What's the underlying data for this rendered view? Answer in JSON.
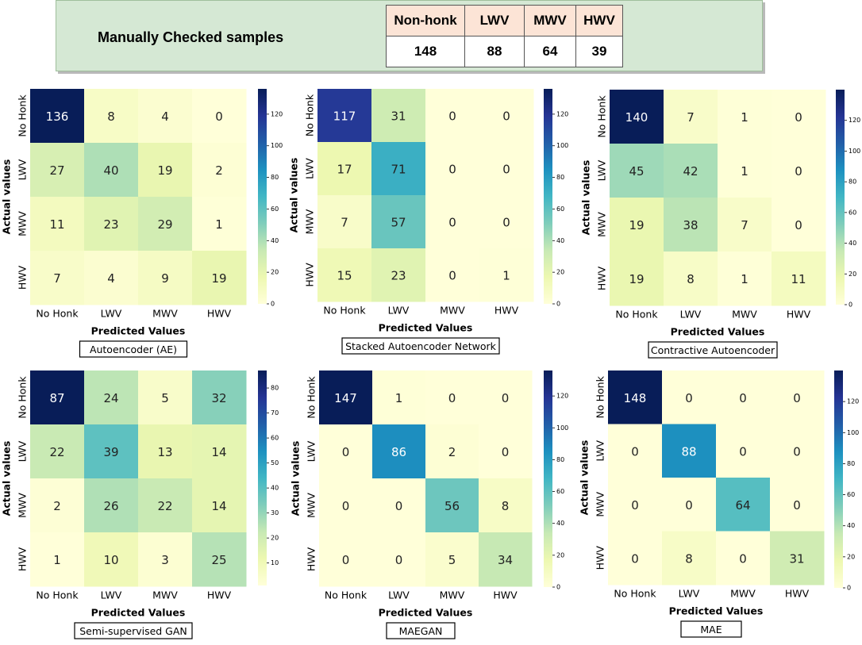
{
  "header": {
    "title": "Manually Checked samples",
    "columns": [
      "Non-honk",
      "LWV",
      "MWV",
      "HWV"
    ],
    "values": [
      "148",
      "88",
      "64",
      "39"
    ]
  },
  "chart_data": [
    {
      "type": "heatmap",
      "title": "Autoencoder (AE)",
      "xlabel": "Predicted Values",
      "ylabel": "Actual values",
      "x_categories": [
        "No Honk",
        "LWV",
        "MWV",
        "HWV"
      ],
      "y_categories": [
        "No Honk",
        "LWV",
        "MWV",
        "HWV"
      ],
      "matrix": [
        [
          136,
          8,
          4,
          0
        ],
        [
          27,
          40,
          19,
          2
        ],
        [
          11,
          23,
          29,
          1
        ],
        [
          7,
          4,
          9,
          19
        ]
      ],
      "colorbar": {
        "min": 0,
        "max": 136,
        "ticks": [
          0,
          20,
          40,
          60,
          80,
          100,
          120
        ]
      }
    },
    {
      "type": "heatmap",
      "title": "Stacked Autoencoder Network",
      "xlabel": "Predicted Values",
      "ylabel": "Actual values",
      "x_categories": [
        "No Honk",
        "LWV",
        "MWV",
        "HWV"
      ],
      "y_categories": [
        "No Honk",
        "LWV",
        "MWV",
        "HWV"
      ],
      "matrix": [
        [
          117,
          31,
          0,
          0
        ],
        [
          17,
          71,
          0,
          0
        ],
        [
          7,
          57,
          0,
          0
        ],
        [
          15,
          23,
          0,
          1
        ]
      ],
      "colorbar": {
        "min": 0,
        "max": 136,
        "ticks": [
          0,
          20,
          40,
          60,
          80,
          100,
          120
        ]
      }
    },
    {
      "type": "heatmap",
      "title": "Contractive Autoencoder",
      "xlabel": "Predicted Values",
      "ylabel": "Actual values",
      "x_categories": [
        "No Honk",
        "LWV",
        "MWV",
        "HWV"
      ],
      "y_categories": [
        "No Honk",
        "LWV",
        "MWV",
        "HWV"
      ],
      "matrix": [
        [
          140,
          7,
          1,
          0
        ],
        [
          45,
          42,
          1,
          0
        ],
        [
          19,
          38,
          7,
          0
        ],
        [
          19,
          8,
          1,
          11
        ]
      ],
      "colorbar": {
        "min": 0,
        "max": 140,
        "ticks": [
          0,
          20,
          40,
          60,
          80,
          100,
          120
        ]
      }
    },
    {
      "type": "heatmap",
      "title": "Semi-supervised GAN",
      "xlabel": "Predicted Values",
      "ylabel": "Actual values",
      "x_categories": [
        "No Honk",
        "LWV",
        "MWV",
        "HWV"
      ],
      "y_categories": [
        "No Honk",
        "LWV",
        "MWV",
        "HWV"
      ],
      "matrix": [
        [
          87,
          24,
          5,
          32
        ],
        [
          22,
          39,
          13,
          14
        ],
        [
          2,
          26,
          22,
          14
        ],
        [
          1,
          10,
          3,
          25
        ]
      ],
      "colorbar": {
        "min": 1,
        "max": 87,
        "ticks": [
          10,
          20,
          30,
          40,
          50,
          60,
          70,
          80
        ]
      }
    },
    {
      "type": "heatmap",
      "title": "MAEGAN",
      "xlabel": "Predicted Values",
      "ylabel": "Actual values",
      "x_categories": [
        "No Honk",
        "LWV",
        "MWV",
        "HWV"
      ],
      "y_categories": [
        "No Honk",
        "LWV",
        "MWV",
        "HWV"
      ],
      "matrix": [
        [
          147,
          1,
          0,
          0
        ],
        [
          0,
          86,
          2,
          0
        ],
        [
          0,
          0,
          56,
          8
        ],
        [
          0,
          0,
          5,
          34
        ]
      ],
      "colorbar": {
        "min": 0,
        "max": 136,
        "ticks": [
          0,
          20,
          40,
          60,
          80,
          100,
          120
        ]
      }
    },
    {
      "type": "heatmap",
      "title": "MAE",
      "xlabel": "Predicted Values",
      "ylabel": "Actual values",
      "x_categories": [
        "No Honk",
        "LWV",
        "MWV",
        "HWV"
      ],
      "y_categories": [
        "No Honk",
        "LWV",
        "MWV",
        "HWV"
      ],
      "matrix": [
        [
          148,
          0,
          0,
          0
        ],
        [
          0,
          88,
          0,
          0
        ],
        [
          0,
          0,
          64,
          0
        ],
        [
          0,
          8,
          0,
          31
        ]
      ],
      "colorbar": {
        "min": 0,
        "max": 140,
        "ticks": [
          0,
          20,
          40,
          60,
          80,
          100,
          120
        ]
      }
    }
  ]
}
